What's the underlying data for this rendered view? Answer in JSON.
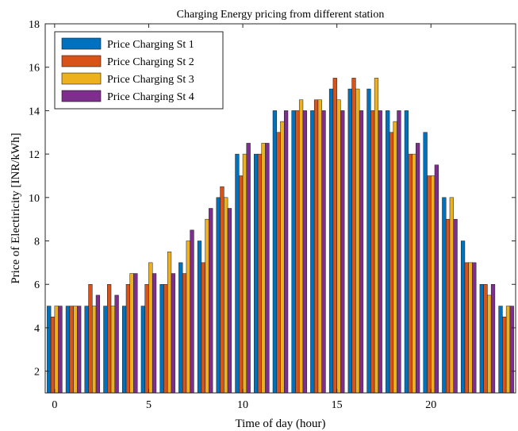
{
  "chart_data": {
    "type": "bar",
    "title": "Charging Energy pricing from different station",
    "xlabel": "Time of day (hour)",
    "ylabel": "Price of Electiricity [INR/kWh]",
    "x": [
      0,
      1,
      2,
      3,
      4,
      5,
      6,
      7,
      8,
      9,
      10,
      11,
      12,
      13,
      14,
      15,
      16,
      17,
      18,
      19,
      20,
      21,
      22,
      23,
      24
    ],
    "xlim": [
      -0.5,
      24.5
    ],
    "ylim": [
      1,
      18
    ],
    "xticks": [
      0,
      5,
      10,
      15,
      20
    ],
    "yticks": [
      2,
      4,
      6,
      8,
      10,
      12,
      14,
      16,
      18
    ],
    "grid": false,
    "legend_position": "top-left",
    "series": [
      {
        "name": "Price Charging St 1",
        "color": "#0072BD",
        "values": [
          5,
          5,
          5,
          5,
          5,
          5,
          6,
          7,
          8,
          10,
          12,
          12,
          14,
          14,
          14,
          15,
          15,
          15,
          14,
          14,
          13,
          10,
          8,
          6,
          5
        ]
      },
      {
        "name": "Price Charging St 2",
        "color": "#D95319",
        "values": [
          4.5,
          5,
          6,
          6,
          6,
          6,
          6,
          6.5,
          7,
          10.5,
          11,
          12,
          13,
          14,
          14.5,
          15.5,
          15.5,
          14,
          13,
          12,
          11,
          9,
          7,
          6,
          4.5
        ]
      },
      {
        "name": "Price Charging St 3",
        "color": "#EDB120",
        "values": [
          5,
          5,
          5,
          5,
          6.5,
          7,
          7.5,
          8,
          9,
          10,
          12,
          12.5,
          13.5,
          14.5,
          14.5,
          14.5,
          15,
          15.5,
          13.5,
          12,
          11,
          10,
          7,
          5.5,
          5
        ]
      },
      {
        "name": "Price Charging St 4",
        "color": "#7E2F8E",
        "values": [
          5,
          5,
          5.5,
          5.5,
          6.5,
          6.5,
          6.5,
          8.5,
          9.5,
          9.5,
          12.5,
          12.5,
          14,
          14,
          14,
          14,
          14,
          14,
          14,
          12.5,
          11.5,
          9,
          7,
          6,
          5
        ]
      }
    ]
  }
}
